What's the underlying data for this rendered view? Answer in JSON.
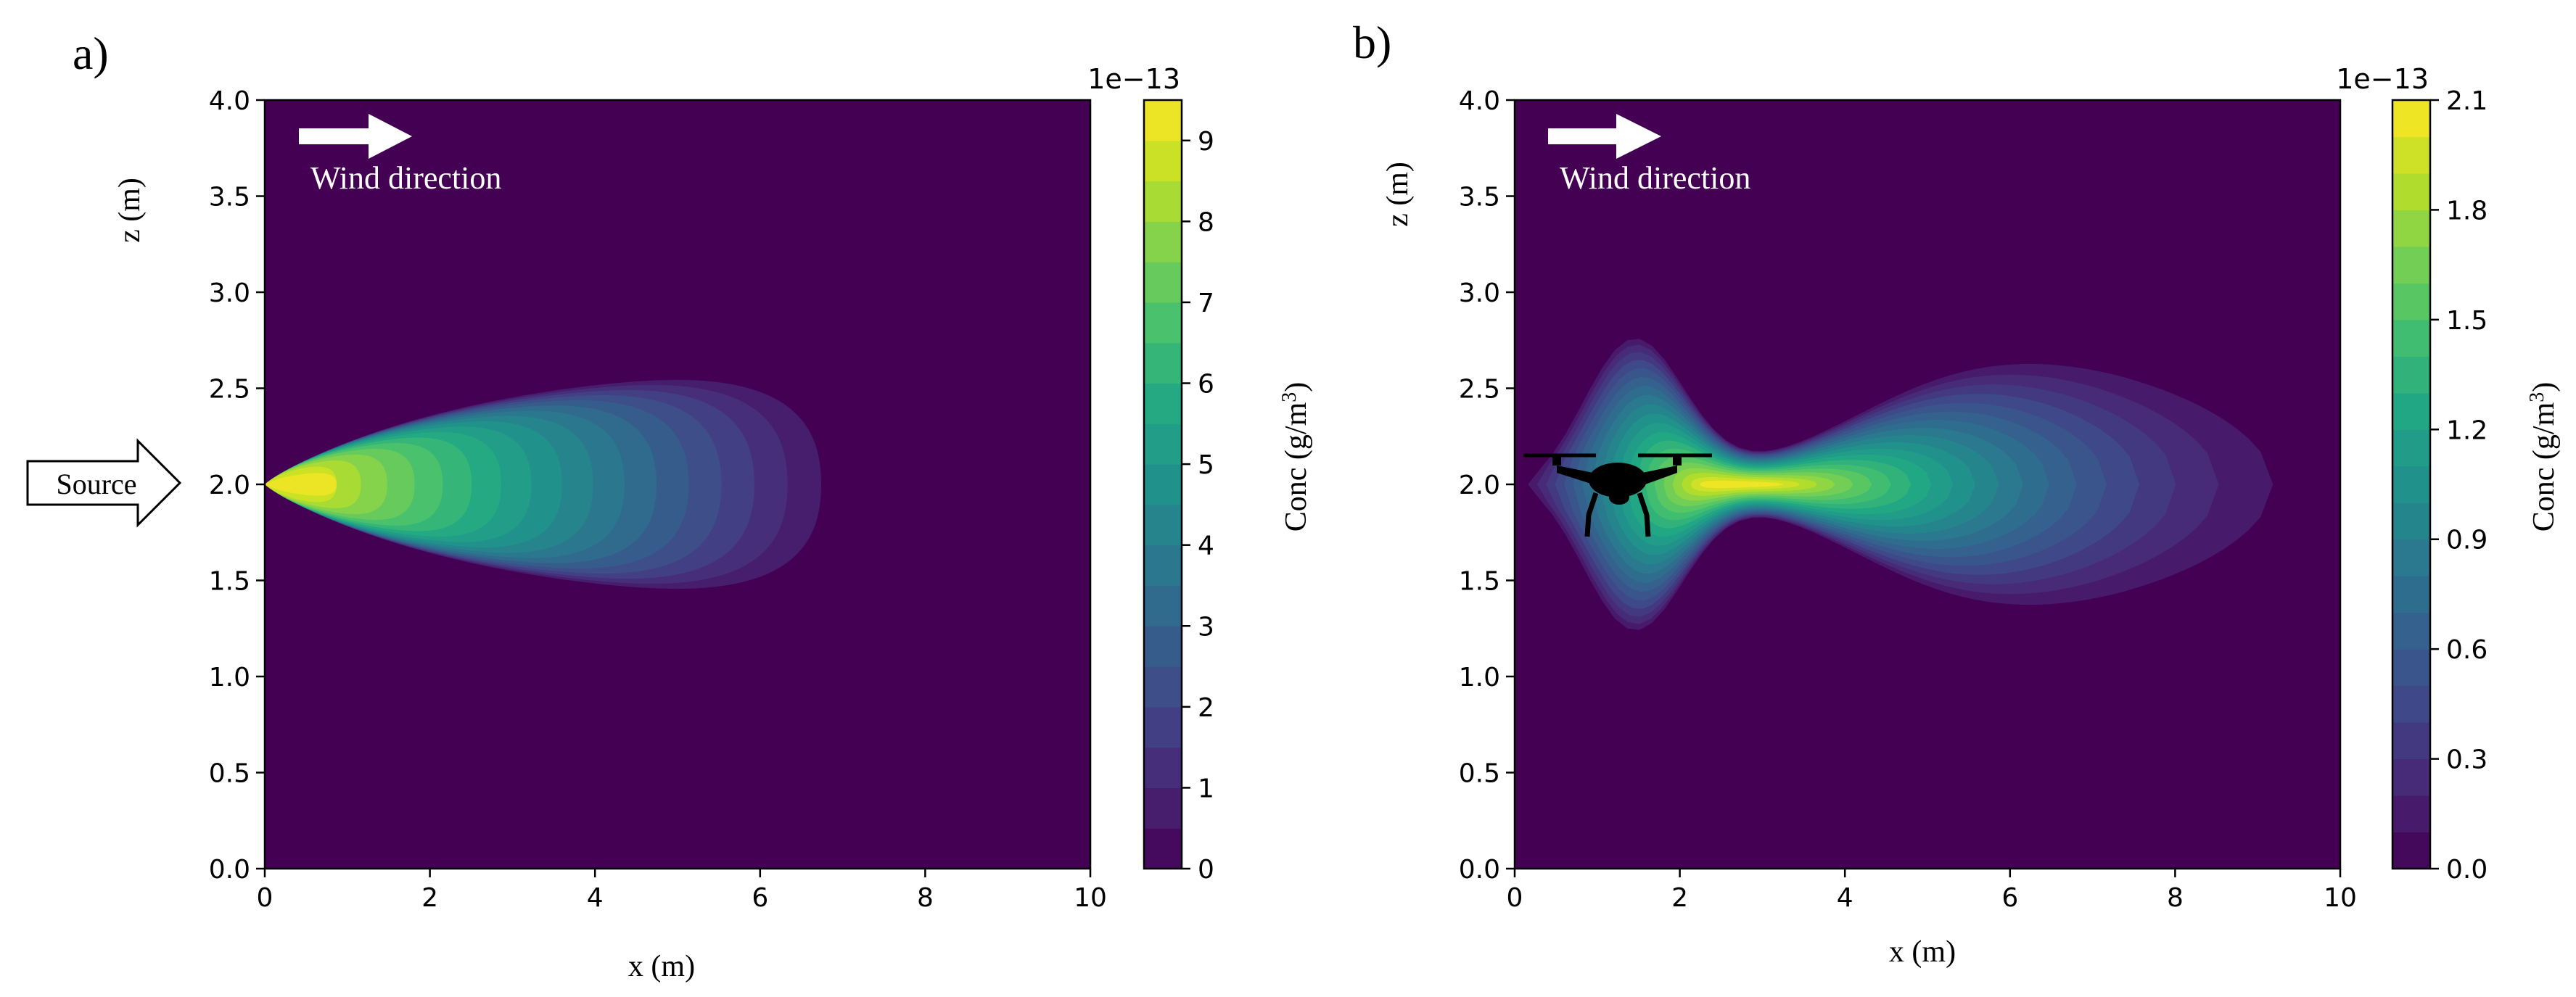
{
  "chart_data": [
    {
      "type": "heatmap",
      "panel_label": "a)",
      "xlabel": "x (m)",
      "ylabel": "z (m)",
      "xlim": [
        0,
        10
      ],
      "ylim": [
        0,
        4
      ],
      "x_ticks": [
        "0",
        "2",
        "4",
        "6",
        "8",
        "10"
      ],
      "y_ticks": [
        "0.0",
        "0.5",
        "1.0",
        "1.5",
        "2.0",
        "2.5",
        "3.0",
        "3.5",
        "4.0"
      ],
      "colorbar": {
        "label": "Conc (g/m",
        "label_sup": "3",
        "label_end": ")",
        "offset_text": "1e−13",
        "range": [
          0,
          9.5
        ],
        "ticks": [
          "0",
          "1",
          "2",
          "3",
          "4",
          "5",
          "6",
          "7",
          "8",
          "9"
        ],
        "levels": 19
      },
      "annotations": {
        "wind": "Wind direction",
        "source": "Source"
      },
      "plume": {
        "source_x": 0.0,
        "source_z": 2.0,
        "peak_x": 0.75,
        "peak_value": 9.5,
        "max_extent_x": 6.8,
        "max_half_width_z": 0.55
      }
    },
    {
      "type": "heatmap",
      "panel_label": "b)",
      "xlabel": "x (m)",
      "ylabel": "z (m)",
      "xlim": [
        0,
        10
      ],
      "ylim": [
        0,
        4
      ],
      "x_ticks": [
        "0",
        "2",
        "4",
        "6",
        "8",
        "10"
      ],
      "y_ticks": [
        "0.0",
        "0.5",
        "1.0",
        "1.5",
        "2.0",
        "2.5",
        "3.0",
        "3.5",
        "4.0"
      ],
      "colorbar": {
        "label": "Conc (g/m",
        "label_sup": "3",
        "label_end": ")",
        "offset_text": "1e−13",
        "range": [
          0,
          2.1
        ],
        "ticks": [
          "0.0",
          "0.3",
          "0.6",
          "0.9",
          "1.2",
          "1.5",
          "1.8",
          "2.1"
        ],
        "levels": 21
      },
      "annotations": {
        "wind": "Wind direction",
        "drone_icon": "quadcopter-drone-icon"
      },
      "plume": {
        "peak_x": 2.7,
        "peak_z": 2.0,
        "peak_value": 2.1,
        "drone_x": 1.3,
        "drone_z": 2.05
      }
    }
  ],
  "colors": {
    "viridis": [
      "#440154",
      "#482475",
      "#414487",
      "#355f8d",
      "#2a788e",
      "#21918c",
      "#22a884",
      "#44bf70",
      "#7ad151",
      "#bddf26",
      "#fde725"
    ],
    "text": "#000000",
    "arrow": "#ffffff"
  }
}
